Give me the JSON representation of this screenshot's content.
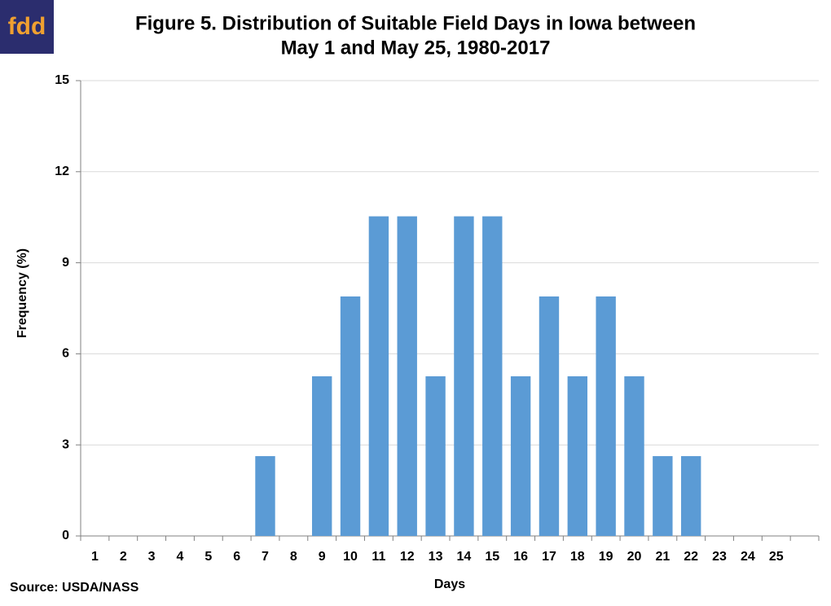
{
  "logo": "fdd",
  "chart_data": {
    "type": "bar",
    "title": [
      "Figure 5. Distribution of Suitable Field Days in Iowa between",
      "May 1 and May 25, 1980-2017"
    ],
    "x_label": "Days",
    "y_label": "Frequency (%)",
    "source": "Source: USDA/NASS",
    "categories": [
      "1",
      "2",
      "3",
      "4",
      "5",
      "6",
      "7",
      "8",
      "9",
      "10",
      "11",
      "12",
      "13",
      "14",
      "15",
      "16",
      "17",
      "18",
      "19",
      "20",
      "21",
      "22",
      "23",
      "24",
      "25",
      null
    ],
    "values": [
      0,
      0,
      0,
      0,
      0,
      0,
      2.63,
      0,
      5.26,
      7.89,
      10.53,
      10.53,
      5.26,
      10.53,
      10.53,
      5.26,
      7.89,
      5.26,
      7.89,
      5.26,
      2.63,
      2.63,
      0,
      0,
      0,
      null
    ],
    "color": "#5b9bd5",
    "ylim": [
      0,
      15
    ],
    "yticks": [
      0,
      3,
      6,
      9,
      12,
      15
    ],
    "grid": true
  }
}
